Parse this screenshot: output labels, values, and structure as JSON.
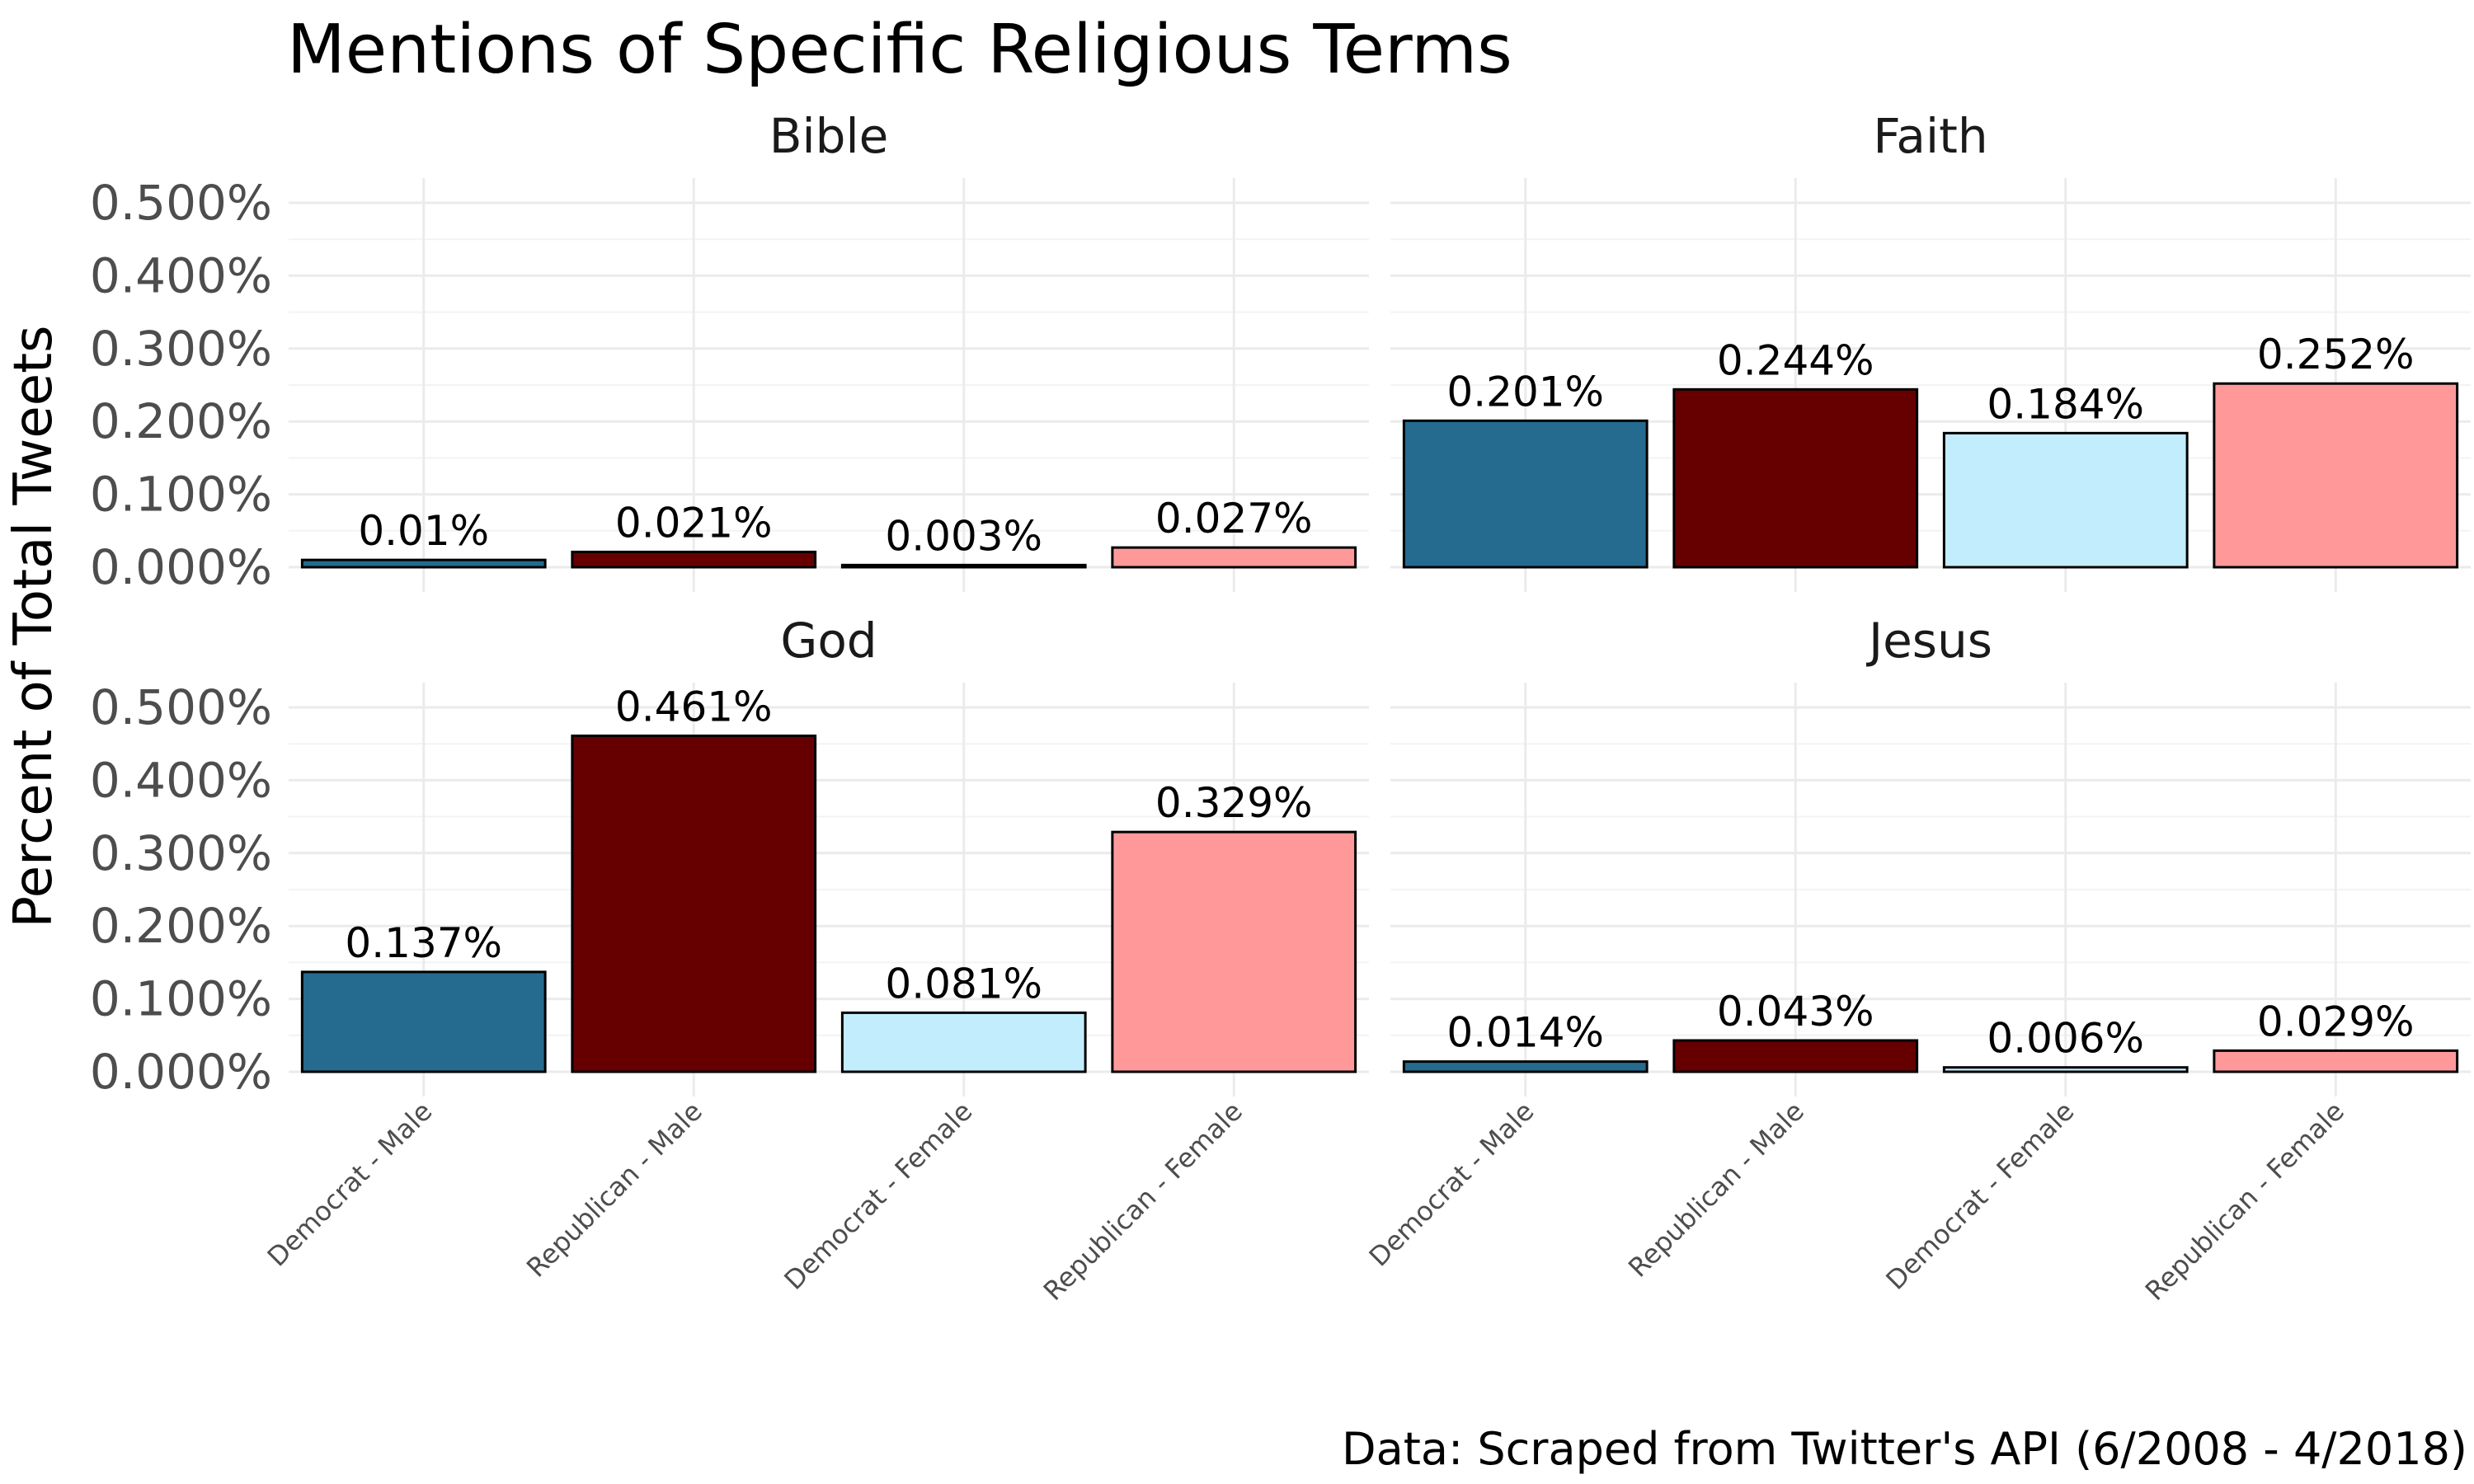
{
  "chart_data": {
    "type": "bar",
    "title": "Mentions of Specific Religious Terms",
    "ylabel": "Percent of Total Tweets",
    "caption": "Data: Scraped from Twitter's API (6/2008 - 4/2018)",
    "categories": [
      "Democrat - Male",
      "Republican - Male",
      "Democrat - Female",
      "Republican - Female"
    ],
    "colors": [
      "#246B8F",
      "#660000",
      "#C2EDFC",
      "#FF9999"
    ],
    "ylim": [
      0,
      0.5
    ],
    "yticks": [
      "0.000%",
      "0.100%",
      "0.200%",
      "0.300%",
      "0.400%",
      "0.500%"
    ],
    "grid": true,
    "legend": "none",
    "panels": [
      {
        "name": "Bible",
        "values": [
          0.01,
          0.021,
          0.003,
          0.027
        ],
        "labels": [
          "0.01%",
          "0.021%",
          "0.003%",
          "0.027%"
        ]
      },
      {
        "name": "Faith",
        "values": [
          0.201,
          0.244,
          0.184,
          0.252
        ],
        "labels": [
          "0.201%",
          "0.244%",
          "0.184%",
          "0.252%"
        ]
      },
      {
        "name": "God",
        "values": [
          0.137,
          0.461,
          0.081,
          0.329
        ],
        "labels": [
          "0.137%",
          "0.461%",
          "0.081%",
          "0.329%"
        ]
      },
      {
        "name": "Jesus",
        "values": [
          0.014,
          0.043,
          0.006,
          0.029
        ],
        "labels": [
          "0.014%",
          "0.043%",
          "0.006%",
          "0.029%"
        ]
      }
    ]
  }
}
